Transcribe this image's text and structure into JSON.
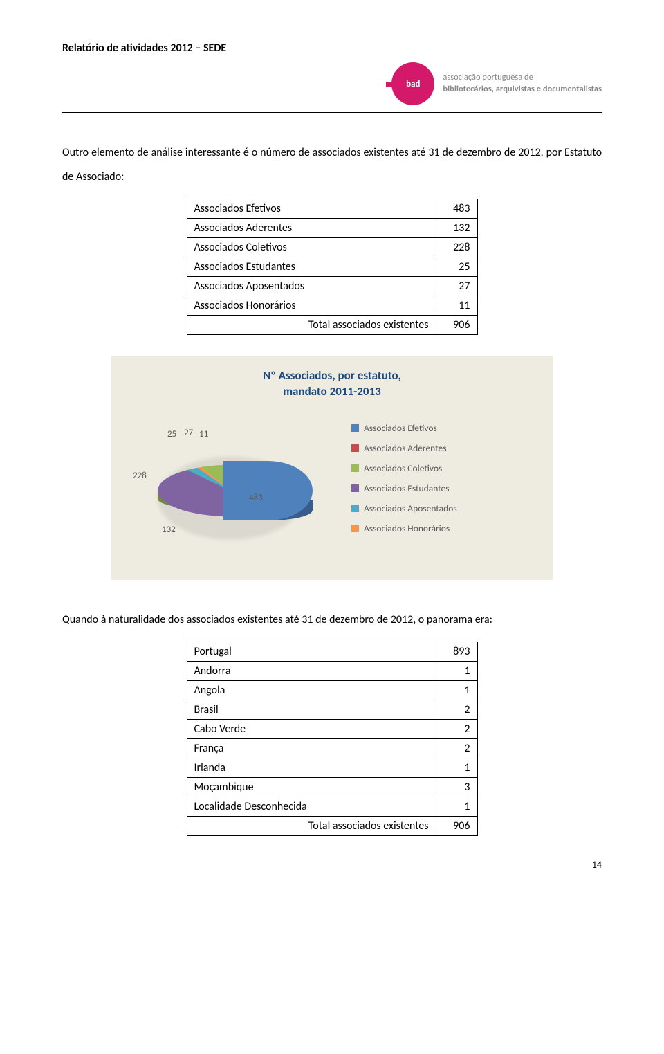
{
  "header": {
    "doc_title": "Relatório de atividades 2012 – SEDE",
    "logo_text_top": "associação portuguesa de",
    "logo_text_bottom": "bibliotecários, arquivistas e documentalistas",
    "logo_label": "bad",
    "logo_bg": "#d4196a"
  },
  "intro_para": "Outro elemento de análise interessante é o número de associados existentes até 31 de dezembro de 2012, por Estatuto de Associado:",
  "table1": {
    "rows": [
      {
        "label": "Associados Efetivos",
        "value": "483"
      },
      {
        "label": "Associados Aderentes",
        "value": "132"
      },
      {
        "label": "Associados Coletivos",
        "value": "228"
      },
      {
        "label": "Associados Estudantes",
        "value": "25"
      },
      {
        "label": "Associados Aposentados",
        "value": "27"
      },
      {
        "label": "Associados Honorários",
        "value": "11"
      }
    ],
    "total_label": "Total associados existentes",
    "total_value": "906"
  },
  "chart": {
    "type": "pie-3d-exploded",
    "title_line1": "Nº Associados, por estatuto,",
    "title_line2": "mandato 2011-2013",
    "title_color": "#1f497d",
    "background": "#eeece1",
    "series": [
      {
        "name": "Associados Efetivos",
        "value": 483,
        "color": "#4f81bd",
        "side": "#385d8a"
      },
      {
        "name": "Associados Aderentes",
        "value": 132,
        "color": "#c0504d",
        "side": "#8c3836"
      },
      {
        "name": "Associados Coletivos",
        "value": 228,
        "color": "#9bbb59",
        "side": "#71893f"
      },
      {
        "name": "Associados Estudantes",
        "value": 25,
        "color": "#8064a2",
        "side": "#5c4776"
      },
      {
        "name": "Associados Aposentados",
        "value": 27,
        "color": "#4bacc6",
        "side": "#357d91"
      },
      {
        "name": "Associados Honorários",
        "value": 11,
        "color": "#f79646",
        "side": "#b66d33"
      }
    ],
    "data_labels": {
      "l483": "483",
      "l132": "132",
      "l228": "228",
      "l25": "25",
      "l27": "27",
      "l11": "11"
    }
  },
  "para2": "Quando à naturalidade dos associados existentes até 31 de dezembro de 2012, o panorama era:",
  "table2": {
    "rows": [
      {
        "label": "Portugal",
        "value": "893"
      },
      {
        "label": "Andorra",
        "value": "1"
      },
      {
        "label": "Angola",
        "value": "1"
      },
      {
        "label": "Brasil",
        "value": "2"
      },
      {
        "label": "Cabo Verde",
        "value": "2"
      },
      {
        "label": "França",
        "value": "2"
      },
      {
        "label": "Irlanda",
        "value": "1"
      },
      {
        "label": "Moçambique",
        "value": "3"
      },
      {
        "label": "Localidade Desconhecida",
        "value": "1"
      }
    ],
    "total_label": "Total associados existentes",
    "total_value": "906"
  },
  "page_number": "14"
}
